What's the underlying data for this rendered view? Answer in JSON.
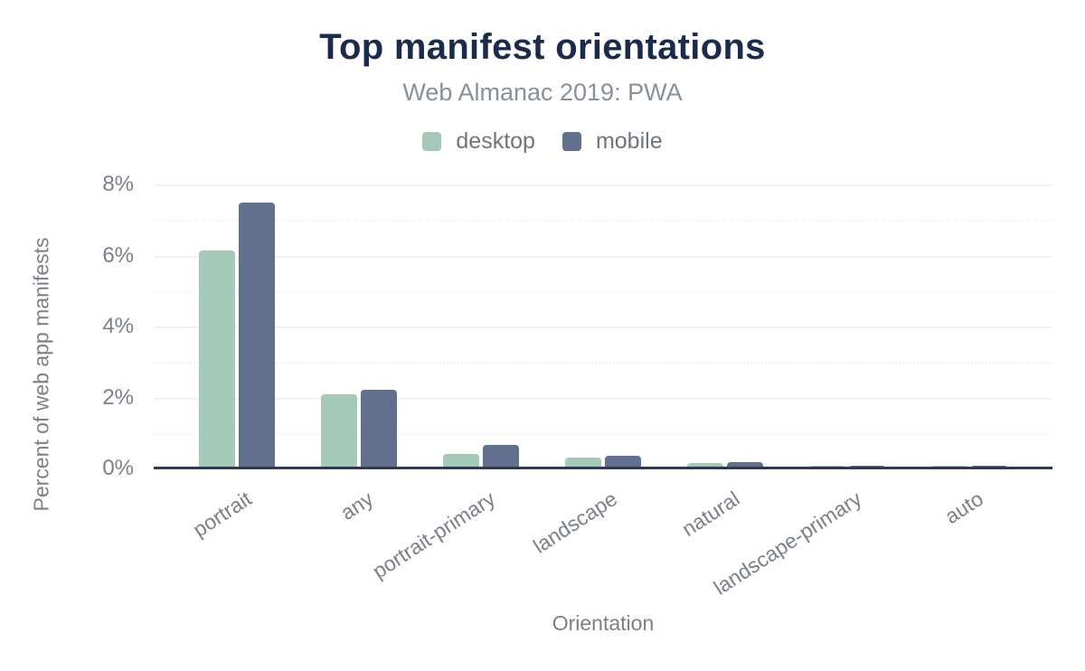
{
  "chart_data": {
    "type": "bar",
    "title": "Top manifest orientations",
    "subtitle": "Web Almanac 2019: PWA",
    "xlabel": "Orientation",
    "ylabel": "Percent of web app manifests",
    "categories": [
      "portrait",
      "any",
      "portrait-primary",
      "landscape",
      "natural",
      "landscape-primary",
      "auto"
    ],
    "series": [
      {
        "name": "desktop",
        "color": "#a4c9b9",
        "values": [
          6.13,
          2.1,
          0.42,
          0.3,
          0.16,
          0.05,
          0.03
        ]
      },
      {
        "name": "mobile",
        "color": "#61708c",
        "values": [
          7.49,
          2.21,
          0.67,
          0.35,
          0.18,
          0.05,
          0.04
        ]
      }
    ],
    "ylim": [
      0,
      8
    ],
    "yticks": [
      0,
      2,
      4,
      6,
      8
    ],
    "ytick_labels": [
      "0%",
      "2%",
      "4%",
      "6%",
      "8%"
    ],
    "minor_yticks": [
      1,
      3,
      5,
      7
    ],
    "grid": true,
    "legend_position": "top"
  },
  "colors": {
    "title": "#1b2b4b",
    "subtitle": "#8a9097",
    "axis_text": "#7b8087",
    "gridline_major": "#f1f1f1",
    "gridline_minor": "#f2f2f2",
    "axis_line": "#2c3b4f",
    "background": "#ffffff"
  }
}
